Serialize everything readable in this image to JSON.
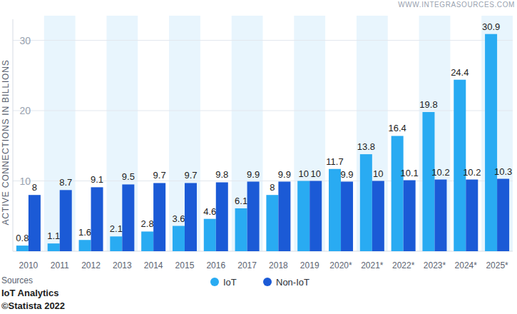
{
  "chart_data": {
    "type": "bar",
    "y_label": "ACTIVE CONNECTIONS IN BILLIONS",
    "annotations": [
      "WWW.INTEGRASOURCES.COM"
    ],
    "source_label": "Sources",
    "sources": [
      "IoT Analytics",
      "©Statista 2022"
    ],
    "categories": [
      "2010",
      "2011",
      "2012",
      "2013",
      "2014",
      "2015",
      "2016",
      "2017",
      "2018",
      "2019",
      "2020*",
      "2021*",
      "2022*",
      "2023*",
      "2024*",
      "2025*"
    ],
    "series": [
      {
        "name": "IoT",
        "color": "#29abf2",
        "values": [
          0.8,
          1.1,
          1.6,
          2.1,
          2.8,
          3.6,
          4.6,
          6.1,
          8,
          10,
          11.7,
          13.8,
          16.4,
          19.8,
          24.4,
          30.9
        ]
      },
      {
        "name": "Non-IoT",
        "color": "#1b5ad6",
        "values": [
          8,
          8.7,
          9.1,
          9.5,
          9.7,
          9.7,
          9.8,
          9.9,
          9.9,
          10,
          9.9,
          10,
          10.1,
          10.2,
          10.2,
          10.3
        ]
      }
    ],
    "ylim": [
      0,
      33
    ],
    "yticks": [
      10,
      20,
      30
    ],
    "grid": true,
    "legend": "bottom",
    "data_labels": true
  }
}
